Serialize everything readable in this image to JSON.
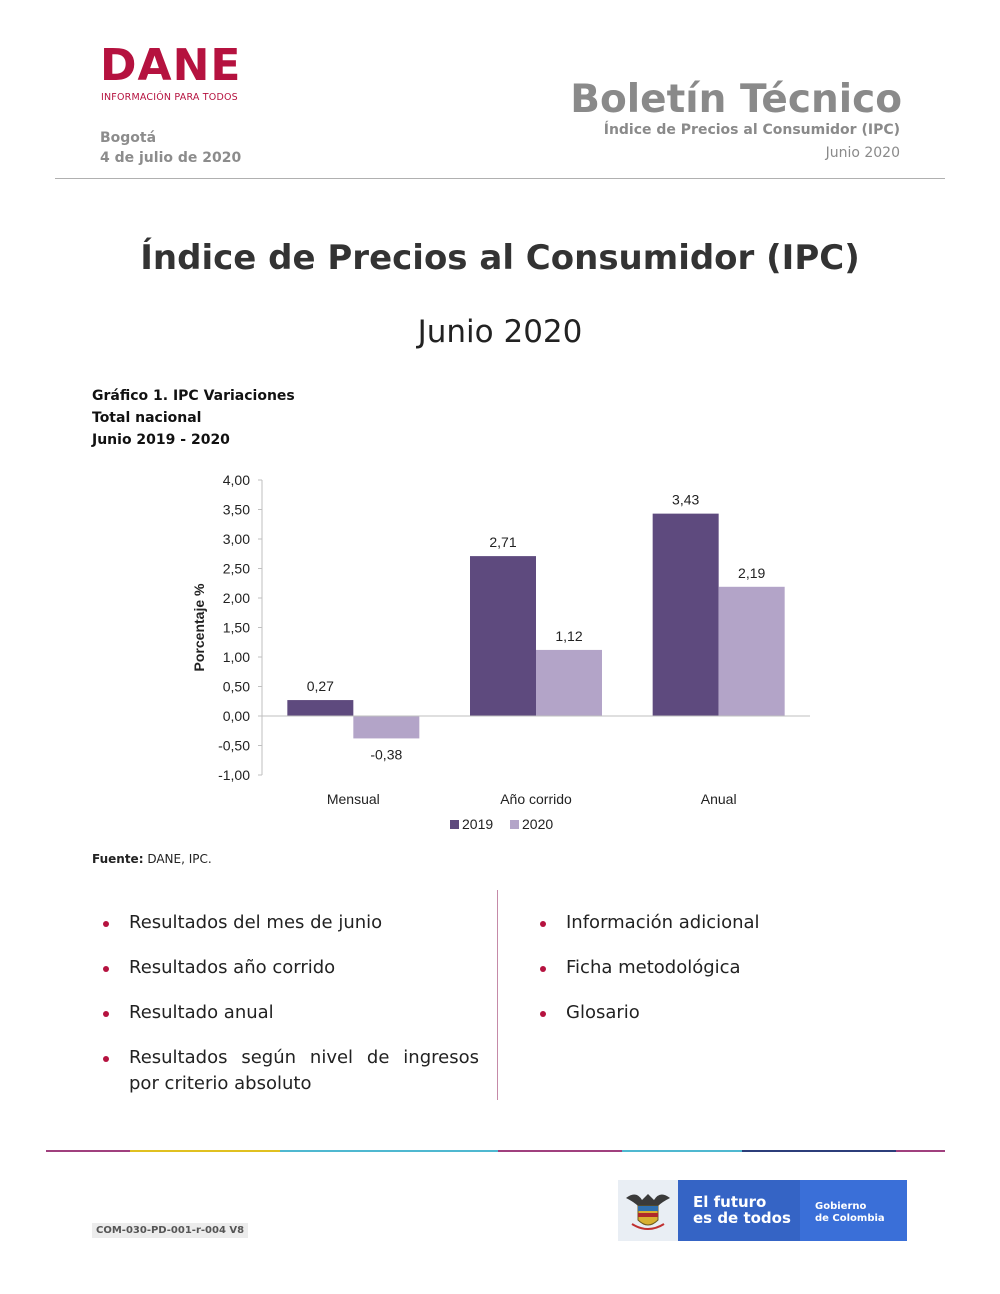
{
  "header": {
    "logo": "DANE",
    "logo_tagline": "INFORMACIÓN PARA TODOS",
    "city": "Bogotá",
    "date": "4 de julio de 2020",
    "bulletin_title": "Boletín Técnico",
    "bulletin_subtitle": "Índice de Precios al Consumidor (IPC)",
    "bulletin_month": "Junio 2020"
  },
  "main": {
    "title": "Índice de Precios al Consumidor (IPC)",
    "month": "Junio 2020",
    "chart_caption": [
      "Gráfico 1. IPC Variaciones",
      "Total nacional",
      "Junio 2019 - 2020"
    ],
    "source_label": "Fuente:",
    "source_text": " DANE, IPC."
  },
  "chart_data": {
    "type": "bar",
    "categories": [
      "Mensual",
      "Año corrido",
      "Anual"
    ],
    "series": [
      {
        "name": "2019",
        "values": [
          0.27,
          2.71,
          3.43
        ],
        "labels": [
          "0,27",
          "2,71",
          "3,43"
        ],
        "color": "#5e4a7e"
      },
      {
        "name": "2020",
        "values": [
          -0.38,
          1.12,
          2.19
        ],
        "labels": [
          "-0,38",
          "1,12",
          "2,19"
        ],
        "color": "#b3a4c8"
      }
    ],
    "ylabel": "Porcentaje %",
    "ylim": [
      -1.0,
      4.0
    ],
    "yticks": [
      4.0,
      3.5,
      3.0,
      2.5,
      2.0,
      1.5,
      1.0,
      0.5,
      0.0,
      -0.5,
      -1.0
    ],
    "ytick_labels": [
      "4,00",
      "3,50",
      "3,00",
      "2,50",
      "2,00",
      "1,50",
      "1,00",
      "0,50",
      "0,00",
      "-0,50",
      "-1,00"
    ],
    "legend_position": "bottom",
    "grid": false
  },
  "contents_left": [
    "Resultados del mes de junio",
    "Resultados año corrido",
    "Resultado anual",
    "Resultados según nivel de ingresos por criterio absoluto"
  ],
  "contents_right": [
    "Información adicional",
    "Ficha metodológica",
    "Glosario"
  ],
  "footer": {
    "code": "COM-030-PD-001-r-004 V8",
    "gov_slogan_1": "El futuro",
    "gov_slogan_2": "es de todos",
    "gov_name_1": "Gobierno",
    "gov_name_2": "de Colombia",
    "stripe_colors": [
      "#a0407e",
      "#e0c020",
      "#4fb8d0",
      "#a0407e",
      "#4fb8d0",
      "#2c3e7a",
      "#a0407e"
    ]
  }
}
